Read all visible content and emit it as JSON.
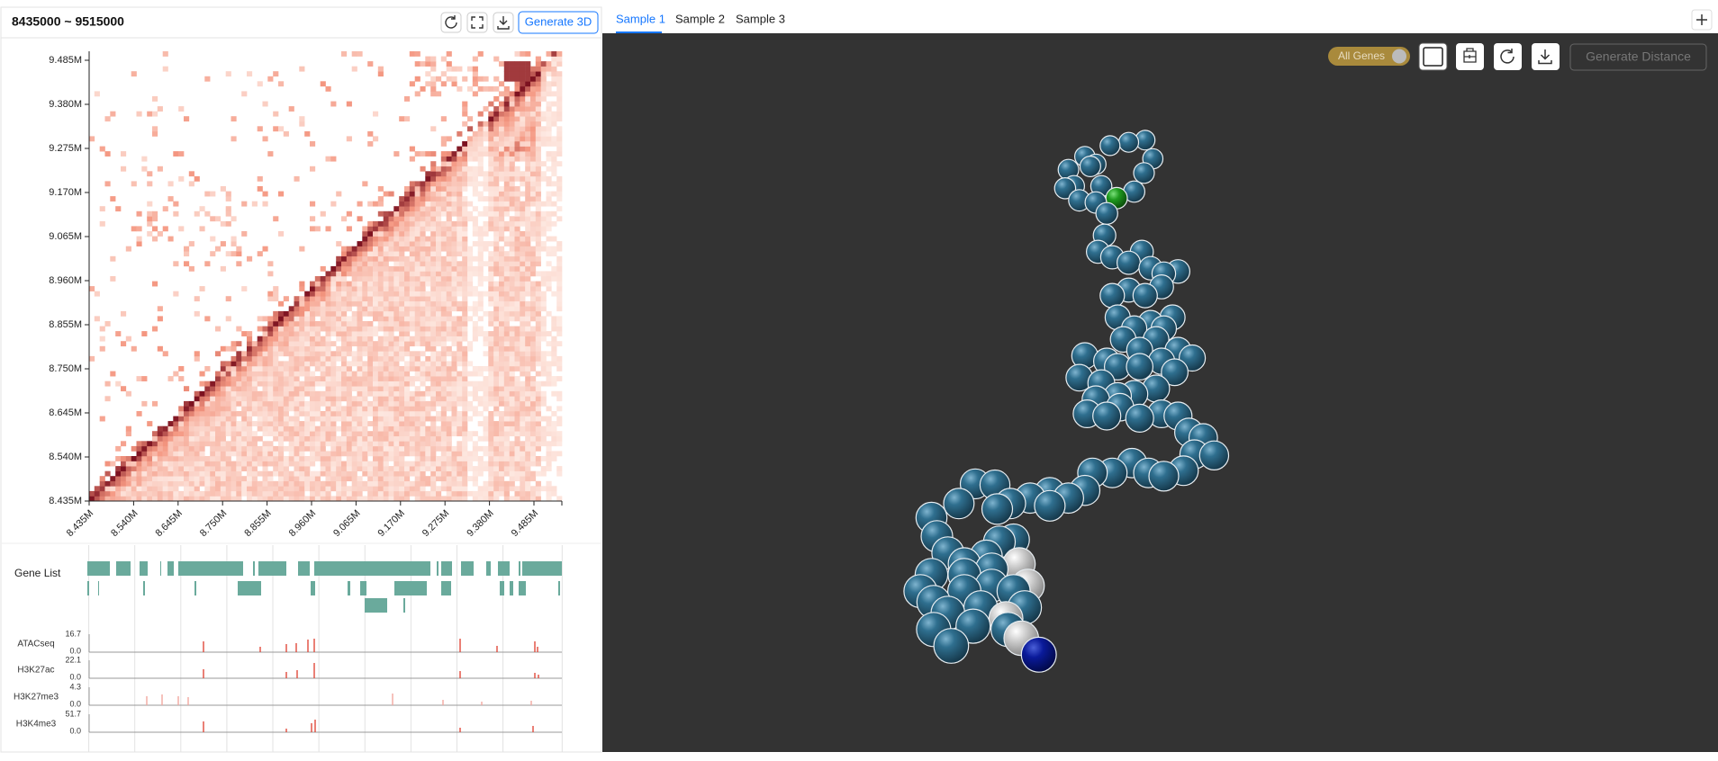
{
  "header": {
    "title": "8435000 ~ 9515000",
    "generate_button": "Generate 3D"
  },
  "heatmap": {
    "y_ticks": [
      "9.485M",
      "9.380M",
      "9.275M",
      "9.170M",
      "9.065M",
      "8.960M",
      "8.855M",
      "8.750M",
      "8.645M",
      "8.540M",
      "8.435M"
    ],
    "x_ticks": [
      "8.435M",
      "8.540M",
      "8.645M",
      "8.750M",
      "8.855M",
      "8.960M",
      "9.065M",
      "9.170M",
      "9.275M",
      "9.380M",
      "9.485M"
    ]
  },
  "gene_list": {
    "label": "Gene List"
  },
  "tracks": [
    {
      "name": "ATACseq",
      "max": "16.7",
      "min": "0.0"
    },
    {
      "name": "H3K27ac",
      "max": "22.1",
      "min": "0.0"
    },
    {
      "name": "H3K27me3",
      "max": "4.3",
      "min": "0.0"
    },
    {
      "name": "H3K4me3",
      "max": "51.7",
      "min": "0.0"
    }
  ],
  "tabs": [
    "Sample 1",
    "Sample 2",
    "Sample 3"
  ],
  "viewer": {
    "toggle_label": "All Genes",
    "distance_button": "Generate Distance"
  }
}
